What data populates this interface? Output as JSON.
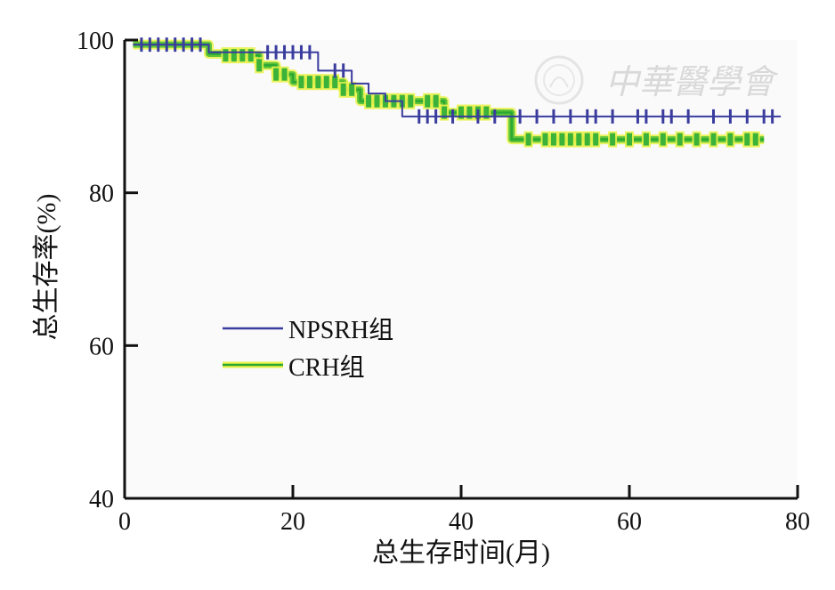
{
  "chart_data": {
    "type": "line",
    "xlabel": "总生存时间(月)",
    "ylabel": "总生存率(%)",
    "xlim": [
      0,
      80
    ],
    "ylim": [
      40,
      100
    ],
    "x_ticks": [
      0,
      20,
      40,
      60,
      80
    ],
    "y_ticks": [
      40,
      60,
      80,
      100
    ],
    "grid": false,
    "legend_position": "center-left",
    "watermark_text": "中華醫學會",
    "series": [
      {
        "name": "NPSRH组",
        "color": "#3a3c9e",
        "style": "step",
        "points": [
          [
            1,
            99.4
          ],
          [
            9.5,
            99.4
          ],
          [
            10,
            98.4
          ],
          [
            22.5,
            98.4
          ],
          [
            23,
            96
          ],
          [
            27,
            94.3
          ],
          [
            29,
            93
          ],
          [
            31,
            92
          ],
          [
            33,
            90
          ],
          [
            78,
            90
          ]
        ],
        "censor_x": [
          2,
          3,
          4,
          5,
          6,
          7,
          8,
          9,
          17,
          18,
          19,
          20,
          21,
          22,
          25,
          26,
          35,
          36,
          37,
          39,
          42,
          44,
          47,
          49,
          51,
          53,
          55,
          56,
          58,
          61,
          62,
          64,
          65,
          67,
          70,
          72,
          74,
          76,
          77
        ]
      },
      {
        "name": "CRH组",
        "color": "#2aa832",
        "style": "step",
        "points": [
          [
            1,
            99.4
          ],
          [
            8,
            99.4
          ],
          [
            10,
            98.2
          ],
          [
            12,
            98
          ],
          [
            16,
            96.7
          ],
          [
            18,
            95.5
          ],
          [
            20,
            94.5
          ],
          [
            26,
            93.5
          ],
          [
            28,
            92
          ],
          [
            36,
            92
          ],
          [
            38,
            90.5
          ],
          [
            44,
            90.5
          ],
          [
            46,
            87
          ],
          [
            76,
            87
          ]
        ],
        "censor_x": [
          12,
          13,
          14,
          15,
          16,
          18,
          19,
          21,
          22,
          23,
          24,
          25,
          26,
          27,
          29,
          30,
          31,
          32,
          33,
          34,
          36,
          37,
          38,
          40,
          41,
          42,
          43,
          48,
          50,
          51,
          52,
          53,
          54,
          55,
          56,
          58,
          60,
          62,
          64,
          66,
          68,
          70,
          72,
          74,
          75
        ]
      }
    ]
  }
}
